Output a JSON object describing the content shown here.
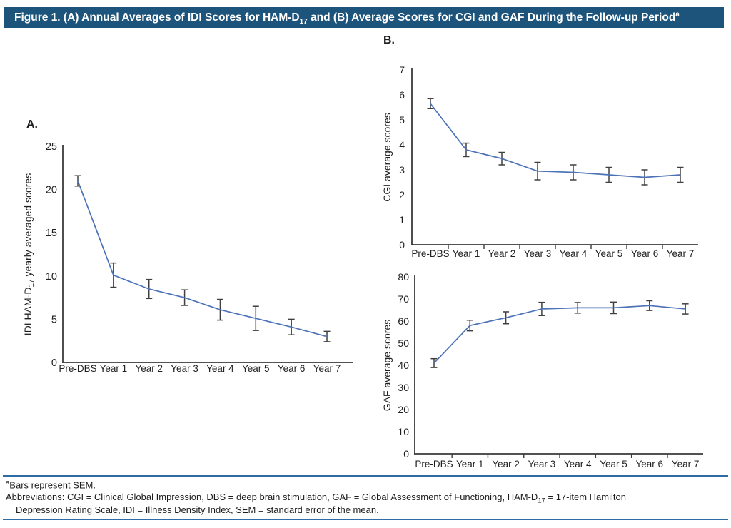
{
  "colors": {
    "header_bg": "#1D547B",
    "header_text": "#FFFFFF",
    "series_line": "#4C72B8",
    "error_bar": "#3F3F3F",
    "axis": "#3A3A3A",
    "text": "#1F1F1F",
    "divider": "#2E6DA4",
    "background": "#FFFFFF"
  },
  "header": {
    "title_part1": "Figure 1. (A) Annual Averages of IDI Scores for HAM-D",
    "title_sub": "17",
    "title_part2": " and (B) Average Scores for CGI and GAF During the Follow-up Period",
    "title_sup": "a"
  },
  "panels": {
    "a_label": "A.",
    "b_label": "B."
  },
  "footnotes": {
    "sem_sup": "a",
    "sem_text": "Bars represent SEM.",
    "abbr_line1_part1": "Abbreviations: CGI = Clinical Global Impression, DBS = deep brain stimulation, GAF = Global Assessment of Functioning, HAM-D",
    "abbr_line1_sub": "17",
    "abbr_line1_part2": " = 17-item Hamilton",
    "abbr_line2": "Depression Rating Scale, IDI = Illness Density Index, SEM = standard error of the mean."
  },
  "chart_data": [
    {
      "id": "A-IDI-HAMD17",
      "type": "line",
      "panel": "A",
      "title": "",
      "xlabel": "",
      "ylabel": "IDI HAM-D17 yearly averaged scores",
      "ylabel_parts": [
        {
          "text": "IDI HAM-D"
        },
        {
          "text": "17",
          "sub": true
        },
        {
          "text": " yearly averaged scores"
        }
      ],
      "categories": [
        "Pre-DBS",
        "Year 1",
        "Year 2",
        "Year 3",
        "Year 4",
        "Year 5",
        "Year 6",
        "Year 7"
      ],
      "values": [
        21,
        10.1,
        8.5,
        7.5,
        6.1,
        5.1,
        4.1,
        3
      ],
      "sem": [
        0.6,
        1.4,
        1.1,
        0.9,
        1.2,
        1.4,
        0.9,
        0.6
      ],
      "ylim": [
        0,
        25
      ],
      "yticks": [
        0,
        5,
        10,
        15,
        20,
        25
      ],
      "x_boundary_ticks": false,
      "error_bars": "SEM",
      "grid": false,
      "legend": "none"
    },
    {
      "id": "B-CGI",
      "type": "line",
      "panel": "B",
      "title": "",
      "xlabel": "",
      "ylabel": "CGI average scores",
      "ylabel_parts": [
        {
          "text": "CGI average scores"
        }
      ],
      "categories": [
        "Pre-DBS",
        "Year 1",
        "Year 2",
        "Year 3",
        "Year 4",
        "Year 5",
        "Year 6",
        "Year 7"
      ],
      "values": [
        5.65,
        3.8,
        3.45,
        2.95,
        2.9,
        2.8,
        2.7,
        2.8
      ],
      "sem": [
        0.2,
        0.27,
        0.25,
        0.35,
        0.3,
        0.3,
        0.3,
        0.3
      ],
      "ylim": [
        0,
        7
      ],
      "yticks": [
        0,
        1,
        2,
        3,
        4,
        5,
        6,
        7
      ],
      "x_boundary_ticks": true,
      "error_bars": "SEM",
      "grid": false,
      "legend": "none"
    },
    {
      "id": "B-GAF",
      "type": "line",
      "panel": "B",
      "title": "",
      "xlabel": "",
      "ylabel": "GAF average scores",
      "ylabel_parts": [
        {
          "text": "GAF average scores"
        }
      ],
      "categories": [
        "Pre-DBS",
        "Year 1",
        "Year 2",
        "Year 3",
        "Year 4",
        "Year 5",
        "Year 6",
        "Year 7"
      ],
      "values": [
        41,
        58,
        61.5,
        65.5,
        66,
        66,
        67,
        65.5
      ],
      "sem": [
        2,
        2.4,
        2.7,
        3,
        2.4,
        2.6,
        2.2,
        2.3
      ],
      "ylim": [
        0,
        80
      ],
      "yticks": [
        0,
        10,
        20,
        30,
        40,
        50,
        60,
        70,
        80
      ],
      "x_boundary_ticks": true,
      "error_bars": "SEM",
      "grid": false,
      "legend": "none"
    }
  ]
}
